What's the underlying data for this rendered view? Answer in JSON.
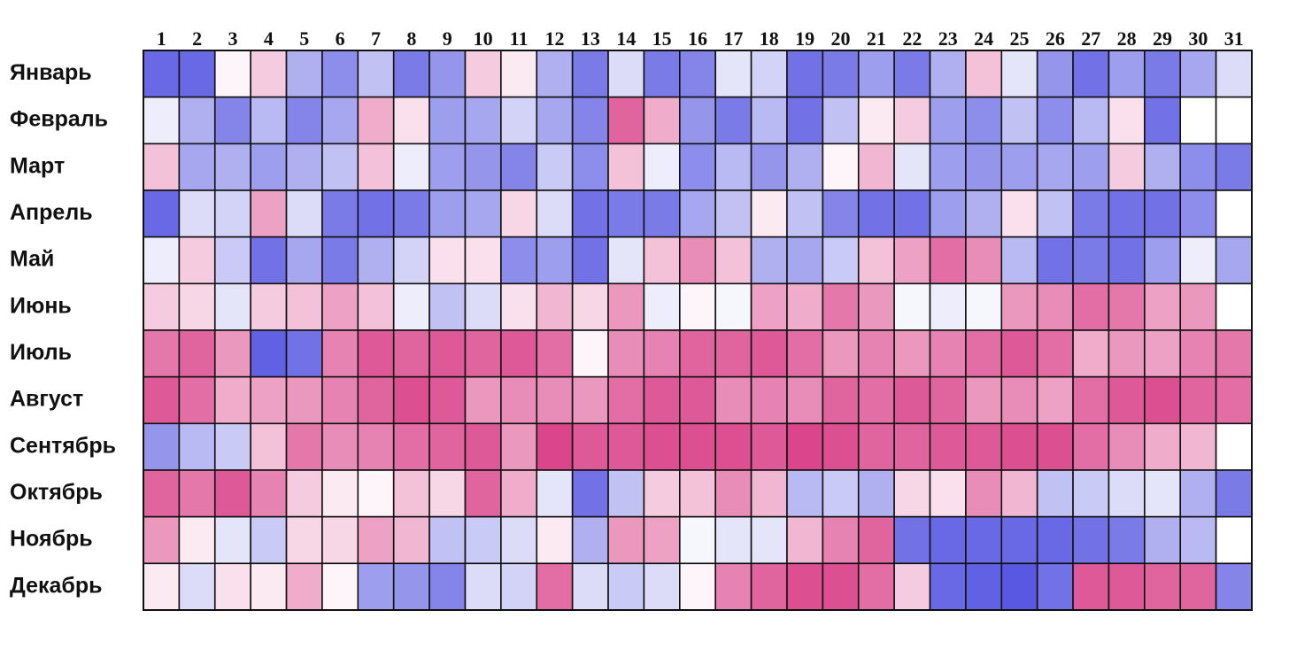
{
  "chart_data": {
    "type": "heatmap",
    "title": "",
    "xlabel": "",
    "ylabel": "",
    "x": [
      "1",
      "2",
      "3",
      "4",
      "5",
      "6",
      "7",
      "8",
      "9",
      "10",
      "11",
      "12",
      "13",
      "14",
      "15",
      "16",
      "17",
      "18",
      "19",
      "20",
      "21",
      "22",
      "23",
      "24",
      "25",
      "26",
      "27",
      "28",
      "29",
      "30",
      "31"
    ],
    "y": [
      "Январь",
      "Февраль",
      "Март",
      "Апрель",
      "Май",
      "Июнь",
      "Июль",
      "Август",
      "Сентябрь",
      "Октябрь",
      "Ноябрь",
      "Декабрь"
    ],
    "value_scale": "-1 = deep blue, 0 = white, +1 = deep magenta (relative intensity, no printed scale)",
    "values": [
      [
        -0.85,
        -0.85,
        0.05,
        0.25,
        -0.45,
        -0.65,
        -0.35,
        -0.75,
        -0.6,
        0.25,
        0.1,
        -0.45,
        -0.75,
        -0.2,
        -0.75,
        -0.7,
        -0.15,
        -0.25,
        -0.8,
        -0.75,
        -0.55,
        -0.75,
        -0.45,
        0.3,
        -0.15,
        -0.6,
        -0.8,
        -0.55,
        -0.75,
        -0.5,
        -0.2
      ],
      [
        -0.1,
        -0.45,
        -0.7,
        -0.4,
        -0.7,
        -0.5,
        0.4,
        0.15,
        -0.55,
        -0.5,
        -0.25,
        -0.5,
        -0.7,
        0.75,
        0.4,
        -0.6,
        -0.75,
        -0.4,
        -0.8,
        -0.35,
        0.1,
        0.25,
        -0.55,
        -0.65,
        -0.35,
        -0.65,
        -0.4,
        0.15,
        -0.8,
        null,
        null
      ],
      [
        0.3,
        -0.5,
        -0.45,
        -0.55,
        -0.45,
        -0.35,
        0.3,
        -0.1,
        -0.55,
        -0.6,
        -0.7,
        -0.3,
        -0.65,
        0.3,
        -0.1,
        -0.65,
        -0.4,
        -0.6,
        -0.45,
        0.05,
        0.35,
        -0.15,
        -0.55,
        -0.6,
        -0.55,
        -0.5,
        -0.55,
        0.25,
        -0.45,
        -0.65,
        -0.75
      ],
      [
        -0.85,
        -0.2,
        -0.25,
        0.45,
        -0.2,
        -0.75,
        -0.8,
        -0.75,
        -0.55,
        -0.5,
        0.2,
        -0.2,
        -0.8,
        -0.75,
        -0.75,
        -0.5,
        -0.35,
        0.1,
        -0.35,
        -0.7,
        -0.8,
        -0.8,
        -0.55,
        -0.45,
        0.15,
        -0.35,
        -0.75,
        -0.8,
        -0.8,
        -0.65,
        null
      ],
      [
        -0.1,
        0.25,
        -0.3,
        -0.8,
        -0.5,
        -0.75,
        -0.45,
        -0.25,
        0.15,
        0.15,
        -0.65,
        -0.55,
        -0.8,
        -0.15,
        0.3,
        0.55,
        0.3,
        -0.45,
        -0.5,
        -0.3,
        0.3,
        0.45,
        0.7,
        0.55,
        -0.4,
        -0.8,
        -0.75,
        -0.8,
        -0.55,
        -0.1,
        -0.5
      ],
      [
        0.25,
        0.2,
        -0.15,
        0.25,
        0.3,
        0.45,
        0.3,
        -0.1,
        -0.35,
        -0.2,
        0.15,
        0.35,
        0.2,
        0.5,
        -0.1,
        0.05,
        -0.05,
        0.45,
        0.4,
        0.65,
        0.5,
        -0.05,
        -0.1,
        -0.05,
        0.5,
        0.55,
        0.7,
        0.65,
        0.45,
        0.5,
        null
      ],
      [
        0.65,
        0.75,
        0.5,
        -0.9,
        -0.8,
        0.6,
        0.8,
        0.75,
        0.8,
        0.75,
        0.8,
        0.7,
        0.05,
        0.55,
        0.6,
        0.75,
        0.75,
        0.8,
        0.7,
        0.5,
        0.6,
        0.5,
        0.6,
        0.7,
        0.8,
        0.7,
        0.4,
        0.5,
        0.45,
        0.6,
        0.65
      ],
      [
        0.8,
        0.7,
        0.4,
        0.45,
        0.5,
        0.6,
        0.75,
        0.85,
        0.8,
        0.5,
        0.55,
        0.55,
        0.5,
        0.7,
        0.8,
        0.8,
        0.55,
        0.6,
        0.55,
        0.75,
        0.7,
        0.8,
        0.75,
        0.5,
        0.55,
        0.45,
        0.7,
        0.8,
        0.85,
        0.75,
        0.7
      ],
      [
        -0.6,
        -0.4,
        -0.3,
        0.3,
        0.65,
        0.55,
        0.6,
        0.7,
        0.75,
        0.8,
        0.5,
        0.9,
        0.8,
        0.8,
        0.85,
        0.85,
        0.85,
        0.8,
        0.9,
        0.85,
        0.75,
        0.75,
        0.8,
        0.8,
        0.85,
        0.85,
        0.7,
        0.55,
        0.4,
        0.35,
        null
      ],
      [
        0.75,
        0.65,
        0.8,
        0.6,
        0.25,
        0.1,
        0.05,
        0.3,
        0.2,
        0.75,
        0.4,
        -0.15,
        -0.8,
        -0.35,
        0.25,
        0.3,
        0.55,
        0.35,
        -0.4,
        -0.3,
        -0.45,
        0.2,
        0.15,
        0.55,
        0.35,
        -0.35,
        -0.3,
        -0.2,
        -0.15,
        -0.45,
        -0.75
      ],
      [
        0.5,
        0.1,
        -0.15,
        -0.3,
        0.2,
        0.2,
        0.45,
        0.35,
        -0.35,
        -0.3,
        -0.2,
        0.1,
        -0.45,
        0.5,
        0.45,
        -0.05,
        -0.15,
        -0.15,
        0.35,
        0.6,
        0.75,
        -0.8,
        -0.85,
        -0.85,
        -0.85,
        -0.85,
        -0.8,
        -0.75,
        -0.45,
        -0.4,
        null
      ],
      [
        0.1,
        -0.2,
        0.15,
        0.1,
        0.4,
        0.05,
        -0.55,
        -0.6,
        -0.7,
        -0.2,
        -0.25,
        0.7,
        -0.2,
        -0.3,
        -0.2,
        0.05,
        0.6,
        0.75,
        0.85,
        0.85,
        0.7,
        0.25,
        -0.85,
        -0.9,
        -0.95,
        -0.8,
        0.8,
        0.8,
        0.75,
        0.75,
        -0.7
      ]
    ],
    "colors": {
      "negative": "#4f4fe0",
      "neutral": "#ffffff",
      "positive": "#d6307e",
      "cell_border": "#111111"
    },
    "grid": true,
    "legend": "none"
  }
}
